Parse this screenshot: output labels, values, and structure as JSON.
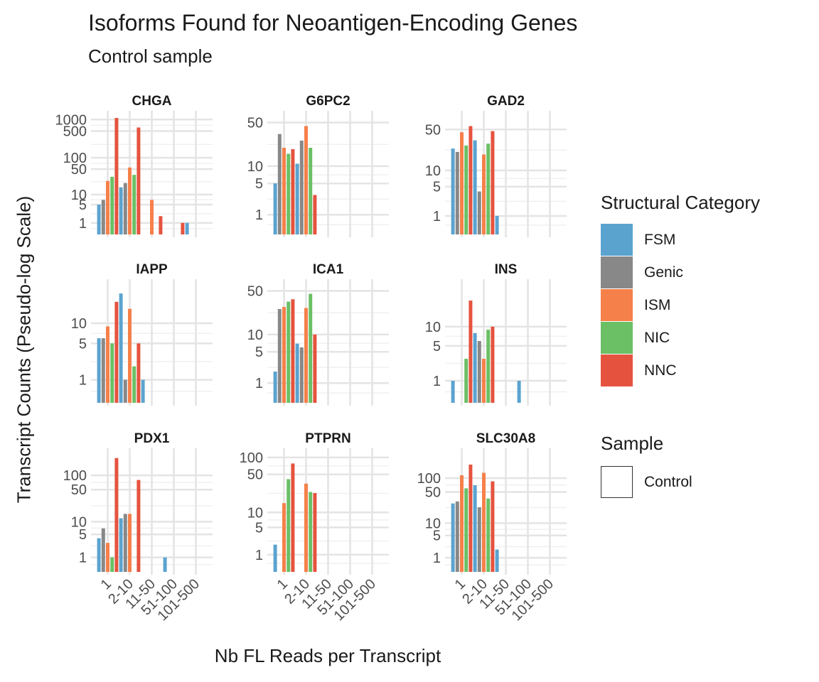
{
  "chart_data": {
    "type": "bar",
    "title": "Isoforms Found for Neoantigen-Encoding Genes",
    "subtitle": "Control sample",
    "xlabel": "Nb FL Reads per Transcript",
    "ylabel": "Transcript Counts (Pseudo-log Scale)",
    "categories": [
      "1",
      "2-10",
      "11-50",
      "51-100",
      "101-500"
    ],
    "series_names": [
      "FSM",
      "Genic",
      "ISM",
      "NIC",
      "NNC"
    ],
    "colors": {
      "FSM": "#5BA3CF",
      "Genic": "#888888",
      "ISM": "#F6804A",
      "NIC": "#6BBF64",
      "NNC": "#E5533F"
    },
    "y_scale": "pseudo-log",
    "grid": true,
    "legend_position": "right",
    "legend": {
      "fill_title": "Structural Category",
      "fill_items": [
        "FSM",
        "Genic",
        "ISM",
        "NIC",
        "NNC"
      ],
      "sample_title": "Sample",
      "sample_items": [
        "Control"
      ]
    },
    "panels": [
      {
        "name": "CHGA",
        "yticks": [
          1,
          5,
          10,
          50,
          100,
          500,
          1000
        ],
        "ymax": 1200,
        "bars": [
          {
            "category": "1",
            "series": "FSM",
            "value": 5
          },
          {
            "category": "1",
            "series": "Genic",
            "value": 7
          },
          {
            "category": "1",
            "series": "ISM",
            "value": 24
          },
          {
            "category": "1",
            "series": "NIC",
            "value": 31
          },
          {
            "category": "1",
            "series": "NNC",
            "value": 1100
          },
          {
            "category": "2-10",
            "series": "FSM",
            "value": 16
          },
          {
            "category": "2-10",
            "series": "Genic",
            "value": 21
          },
          {
            "category": "2-10",
            "series": "ISM",
            "value": 55
          },
          {
            "category": "2-10",
            "series": "NIC",
            "value": 35
          },
          {
            "category": "2-10",
            "series": "NNC",
            "value": 620
          },
          {
            "category": "11-50",
            "series": "ISM",
            "value": 7
          },
          {
            "category": "11-50",
            "series": "NNC",
            "value": 2
          },
          {
            "category": "51-100",
            "series": "NNC",
            "value": 1
          },
          {
            "category": "101-500",
            "series": "FSM",
            "value": 1
          }
        ]
      },
      {
        "name": "G6PC2",
        "yticks": [
          1,
          5,
          10,
          50
        ],
        "ymax": 62,
        "bars": [
          {
            "category": "1",
            "series": "FSM",
            "value": 5
          },
          {
            "category": "1",
            "series": "Genic",
            "value": 33
          },
          {
            "category": "1",
            "series": "ISM",
            "value": 20
          },
          {
            "category": "1",
            "series": "NIC",
            "value": 16
          },
          {
            "category": "1",
            "series": "NNC",
            "value": 19
          },
          {
            "category": "2-10",
            "series": "FSM",
            "value": 11
          },
          {
            "category": "2-10",
            "series": "Genic",
            "value": 26
          },
          {
            "category": "2-10",
            "series": "ISM",
            "value": 44
          },
          {
            "category": "2-10",
            "series": "NIC",
            "value": 20
          },
          {
            "category": "2-10",
            "series": "NNC",
            "value": 3
          }
        ]
      },
      {
        "name": "GAD2",
        "yticks": [
          1,
          5,
          10,
          50
        ],
        "ymax": 82,
        "bars": [
          {
            "category": "1",
            "series": "FSM",
            "value": 24
          },
          {
            "category": "1",
            "series": "Genic",
            "value": 21
          },
          {
            "category": "1",
            "series": "ISM",
            "value": 45
          },
          {
            "category": "1",
            "series": "NIC",
            "value": 27
          },
          {
            "category": "1",
            "series": "NNC",
            "value": 57
          },
          {
            "category": "2-10",
            "series": "FSM",
            "value": 33
          },
          {
            "category": "2-10",
            "series": "Genic",
            "value": 4
          },
          {
            "category": "2-10",
            "series": "ISM",
            "value": 19
          },
          {
            "category": "2-10",
            "series": "NIC",
            "value": 29
          },
          {
            "category": "2-10",
            "series": "NNC",
            "value": 47
          },
          {
            "category": "11-50",
            "series": "FSM",
            "value": 1
          }
        ]
      },
      {
        "name": "IAPP",
        "yticks": [
          1,
          5,
          10
        ],
        "ymax": 34,
        "bars": [
          {
            "category": "1",
            "series": "FSM",
            "value": 6
          },
          {
            "category": "1",
            "series": "Genic",
            "value": 6
          },
          {
            "category": "1",
            "series": "ISM",
            "value": 9
          },
          {
            "category": "1",
            "series": "NIC",
            "value": 5
          },
          {
            "category": "1",
            "series": "NNC",
            "value": 20
          },
          {
            "category": "2-10",
            "series": "FSM",
            "value": 26
          },
          {
            "category": "2-10",
            "series": "Genic",
            "value": 1
          },
          {
            "category": "2-10",
            "series": "ISM",
            "value": 16
          },
          {
            "category": "2-10",
            "series": "NIC",
            "value": 2
          },
          {
            "category": "2-10",
            "series": "NNC",
            "value": 5
          },
          {
            "category": "11-50",
            "series": "FSM",
            "value": 1
          }
        ]
      },
      {
        "name": "ICA1",
        "yticks": [
          1,
          5,
          10,
          50
        ],
        "ymax": 62,
        "bars": [
          {
            "category": "1",
            "series": "FSM",
            "value": 2
          },
          {
            "category": "1",
            "series": "Genic",
            "value": 26
          },
          {
            "category": "1",
            "series": "ISM",
            "value": 28
          },
          {
            "category": "1",
            "series": "NIC",
            "value": 34
          },
          {
            "category": "1",
            "series": "NNC",
            "value": 37
          },
          {
            "category": "2-10",
            "series": "FSM",
            "value": 7
          },
          {
            "category": "2-10",
            "series": "Genic",
            "value": 6
          },
          {
            "category": "2-10",
            "series": "ISM",
            "value": 27
          },
          {
            "category": "2-10",
            "series": "NIC",
            "value": 45
          },
          {
            "category": "2-10",
            "series": "NNC",
            "value": 10
          }
        ]
      },
      {
        "name": "INS",
        "yticks": [
          1,
          5,
          10
        ],
        "ymax": 40,
        "bars": [
          {
            "category": "1",
            "series": "FSM",
            "value": 1
          },
          {
            "category": "1",
            "series": "ISM",
            "value": 0
          },
          {
            "category": "1",
            "series": "NIC",
            "value": 3
          },
          {
            "category": "1",
            "series": "NNC",
            "value": 24
          },
          {
            "category": "2-10",
            "series": "FSM",
            "value": 8
          },
          {
            "category": "2-10",
            "series": "Genic",
            "value": 6
          },
          {
            "category": "2-10",
            "series": "ISM",
            "value": 3
          },
          {
            "category": "2-10",
            "series": "NIC",
            "value": 9
          },
          {
            "category": "2-10",
            "series": "NNC",
            "value": 10
          },
          {
            "category": "51-100",
            "series": "FSM",
            "value": 1
          }
        ]
      },
      {
        "name": "PDX1",
        "yticks": [
          1,
          5,
          10,
          50,
          100
        ],
        "ymax": 280,
        "bars": [
          {
            "category": "1",
            "series": "FSM",
            "value": 4
          },
          {
            "category": "1",
            "series": "Genic",
            "value": 7
          },
          {
            "category": "1",
            "series": "ISM",
            "value": 3
          },
          {
            "category": "1",
            "series": "NIC",
            "value": 1
          },
          {
            "category": "1",
            "series": "NNC",
            "value": 230
          },
          {
            "category": "2-10",
            "series": "FSM",
            "value": 12
          },
          {
            "category": "2-10",
            "series": "Genic",
            "value": 15
          },
          {
            "category": "2-10",
            "series": "ISM",
            "value": 15
          },
          {
            "category": "2-10",
            "series": "NNC",
            "value": 80
          },
          {
            "category": "51-100",
            "series": "FSM",
            "value": 1
          }
        ]
      },
      {
        "name": "PTPRN",
        "yticks": [
          1,
          5,
          10,
          50,
          100
        ],
        "ymax": 115,
        "bars": [
          {
            "category": "1",
            "series": "FSM",
            "value": 2
          },
          {
            "category": "1",
            "series": "ISM",
            "value": 15
          },
          {
            "category": "1",
            "series": "NIC",
            "value": 41
          },
          {
            "category": "1",
            "series": "NNC",
            "value": 78
          },
          {
            "category": "2-10",
            "series": "ISM",
            "value": 34
          },
          {
            "category": "2-10",
            "series": "NIC",
            "value": 24
          },
          {
            "category": "2-10",
            "series": "NNC",
            "value": 23
          }
        ]
      },
      {
        "name": "SLC30A8",
        "yticks": [
          1,
          5,
          10,
          50,
          100
        ],
        "ymax": 330,
        "bars": [
          {
            "category": "1",
            "series": "FSM",
            "value": 28
          },
          {
            "category": "1",
            "series": "Genic",
            "value": 31
          },
          {
            "category": "1",
            "series": "ISM",
            "value": 115
          },
          {
            "category": "1",
            "series": "NIC",
            "value": 60
          },
          {
            "category": "1",
            "series": "NNC",
            "value": 195
          },
          {
            "category": "2-10",
            "series": "FSM",
            "value": 70
          },
          {
            "category": "2-10",
            "series": "Genic",
            "value": 23
          },
          {
            "category": "2-10",
            "series": "ISM",
            "value": 130
          },
          {
            "category": "2-10",
            "series": "NIC",
            "value": 36
          },
          {
            "category": "2-10",
            "series": "NNC",
            "value": 85
          },
          {
            "category": "11-50",
            "series": "FSM",
            "value": 2
          }
        ]
      }
    ]
  }
}
